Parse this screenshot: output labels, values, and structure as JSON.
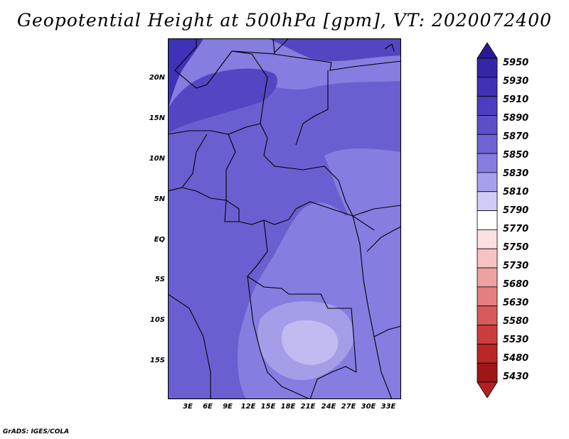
{
  "title": "Geopotential Height at 500hPa [gpm], VT: 2020072400",
  "credit": "GrADS: IGES/COLA",
  "lat_labels": [
    "20N",
    "15N",
    "10N",
    "5N",
    "EQ",
    "5S",
    "10S",
    "15S"
  ],
  "lon_labels": [
    "3E",
    "6E",
    "9E",
    "12E",
    "15E",
    "18E",
    "21E",
    "24E",
    "27E",
    "30E",
    "33E"
  ],
  "colorbar": {
    "labels": [
      "5950",
      "5930",
      "5910",
      "5890",
      "5870",
      "5850",
      "5830",
      "5810",
      "5790",
      "5770",
      "5750",
      "5730",
      "5680",
      "5630",
      "5580",
      "5530",
      "5480",
      "5430"
    ],
    "colors": [
      "#2a1896",
      "#3526a8",
      "#4032b6",
      "#4c3ec0",
      "#5a50c9",
      "#6d65d4",
      "#857ee0",
      "#a6a0ec",
      "#cfccf7",
      "#ffffff",
      "#fbe1e1",
      "#f6c2c2",
      "#eea1a1",
      "#e47f7f",
      "#d95a5a",
      "#cb3d3d",
      "#b82626",
      "#9e1616",
      "#b52020"
    ]
  },
  "map_colors": {
    "deep": "#4032b6",
    "dark": "#5446c2",
    "mid": "#6a5fd0",
    "light": "#857ee0",
    "lighter": "#a49ee9",
    "lightest": "#c0bcf1",
    "border": "#000000"
  }
}
